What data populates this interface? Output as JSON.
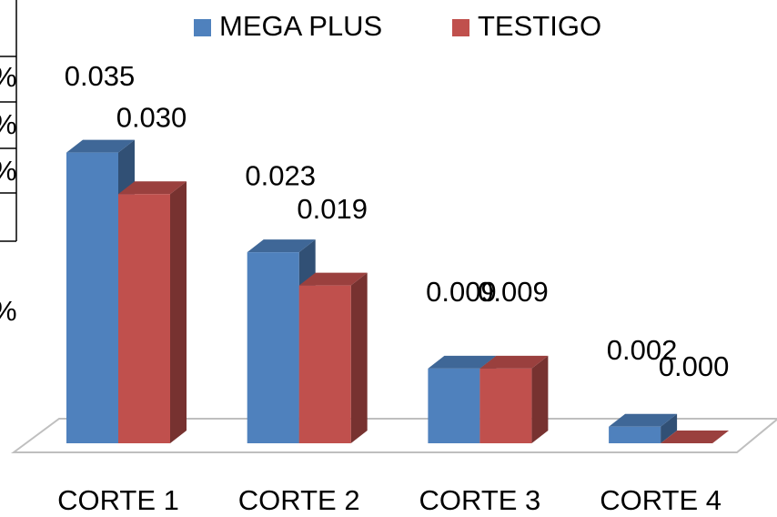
{
  "chart_data": {
    "type": "bar3d",
    "categories": [
      "CORTE 1",
      "CORTE 2",
      "CORTE 3",
      "CORTE 4"
    ],
    "series": [
      {
        "name": "MEGA PLUS",
        "color": "#4f81bd",
        "values": [
          0.035,
          0.023,
          0.009,
          0.002
        ],
        "value_labels": [
          "0.035",
          "0.023",
          "0.009",
          "0.002"
        ]
      },
      {
        "name": "TESTIGO",
        "color": "#c0504d",
        "values": [
          0.03,
          0.019,
          0.009,
          0.0
        ],
        "value_labels": [
          "0.030",
          "0.019",
          "0.009",
          "0.000"
        ]
      }
    ],
    "ylim": [
      0,
      0.04
    ],
    "legend": "top"
  },
  "cropped_table": {
    "cells": [
      "%",
      "%",
      "%"
    ],
    "note_symbol": "%"
  }
}
